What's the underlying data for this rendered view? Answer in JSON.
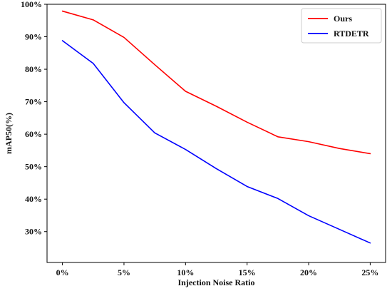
{
  "chart_data": {
    "type": "line",
    "xlabel": "Injection Noise Ratio",
    "ylabel": "mAP50(%)",
    "x": [
      0,
      2.5,
      5,
      7.5,
      10,
      12.5,
      15,
      17.5,
      20,
      22.5,
      25
    ],
    "xticks": [
      0,
      5,
      10,
      15,
      20,
      25
    ],
    "xtick_labels": [
      "0%",
      "5%",
      "10%",
      "15%",
      "20%",
      "25%"
    ],
    "xlim": [
      -1.25,
      26.25
    ],
    "yticks": [
      30,
      40,
      50,
      60,
      70,
      80,
      90,
      100
    ],
    "ytick_labels": [
      "30%",
      "40%",
      "50%",
      "60%",
      "70%",
      "80%",
      "90%",
      "100%"
    ],
    "ylim": [
      20.5,
      100
    ],
    "grid": false,
    "legend_position": "top-right",
    "series": [
      {
        "name": "Ours",
        "color": "#ff0000",
        "values": [
          97.9,
          95.2,
          89.8,
          81.4,
          73.2,
          68.6,
          63.7,
          59.2,
          57.7,
          55.6,
          54.0
        ]
      },
      {
        "name": "RTDETR",
        "color": "#0000ff",
        "values": [
          88.8,
          81.8,
          69.7,
          60.4,
          55.3,
          49.4,
          43.9,
          40.2,
          34.9,
          30.7,
          26.5
        ]
      }
    ]
  }
}
